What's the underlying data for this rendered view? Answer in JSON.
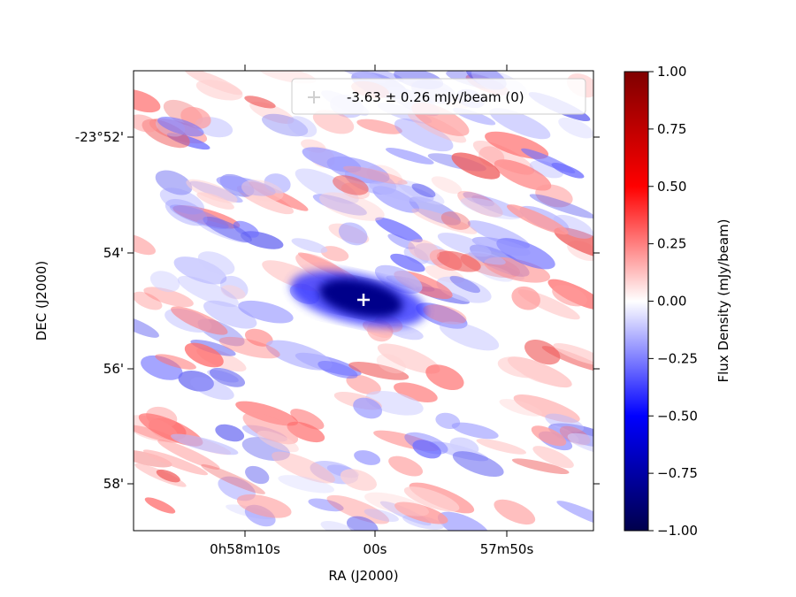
{
  "chart_data": {
    "type": "heatmap",
    "title": "",
    "xlabel": "RA (J2000)",
    "ylabel": "DEC (J2000)",
    "x_ticks": [
      "0h58m10s",
      "00s",
      "57m50s"
    ],
    "y_ticks": [
      "-23°52'",
      "54'",
      "56'",
      "58'"
    ],
    "colorbar": {
      "label": "Flux Density (mJy/beam)",
      "colormap": "seismic",
      "range": [
        -1.0,
        1.0
      ],
      "ticks": [
        "1.00",
        "0.75",
        "0.50",
        "0.25",
        "0.00",
        "−0.25",
        "−0.50",
        "−0.75",
        "−1.00"
      ],
      "tick_values": [
        1.0,
        0.75,
        0.5,
        0.25,
        0.0,
        -0.25,
        -0.5,
        -0.75,
        -1.0
      ]
    },
    "legend": {
      "placement": "top-right",
      "marker": "plus",
      "marker_color": "#d0d0d0",
      "text": "-3.63 ± 0.26 mJy/beam (0)"
    },
    "source_marker": {
      "ra": "00s",
      "dec": "54.9'",
      "color": "#ffffff",
      "flux_mJy_per_beam": -3.63,
      "error_mJy_per_beam": 0.26
    },
    "grid": false
  },
  "colors": {
    "negative": "#00007f",
    "zero": "#ffffff",
    "positive": "#7f0000"
  }
}
